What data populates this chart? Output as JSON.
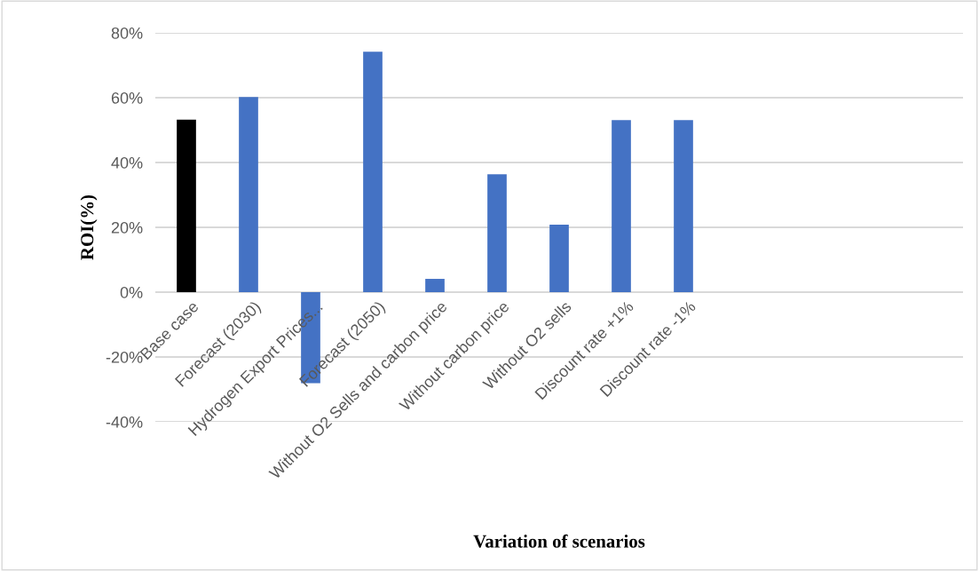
{
  "chart_data": {
    "type": "bar",
    "xlabel": "Variation of scenarios",
    "ylabel": "ROI(%)",
    "categories": [
      "Base case",
      "Forecast (2030)",
      "Hydrogen Export Prices...",
      "Forecast (2050)",
      "Without O2 Sells and carbon price",
      "Without carbon price",
      "Without O2 sells",
      "Discount rate +1%",
      "Discount rate -1%",
      null,
      null,
      null,
      null
    ],
    "values": [
      53.2,
      60.2,
      -28.1,
      74.2,
      4.1,
      36.4,
      20.8,
      53.1,
      53.1,
      null,
      null,
      null,
      null
    ],
    "colors": [
      "#000000",
      "#4472c4",
      "#4472c4",
      "#4472c4",
      "#4472c4",
      "#4472c4",
      "#4472c4",
      "#4472c4",
      "#4472c4",
      "#4472c4",
      "#4472c4",
      "#4472c4",
      "#4472c4"
    ],
    "ylim": [
      -40,
      80
    ],
    "yticks": [
      {
        "value": -40,
        "label": "-40%"
      },
      {
        "value": -20,
        "label": "-20%"
      },
      {
        "value": 0,
        "label": "0%"
      },
      {
        "value": 20,
        "label": "20%"
      },
      {
        "value": 40,
        "label": "40%"
      },
      {
        "value": 60,
        "label": "60%"
      },
      {
        "value": 80,
        "label": "80%"
      }
    ],
    "grid": "y"
  }
}
